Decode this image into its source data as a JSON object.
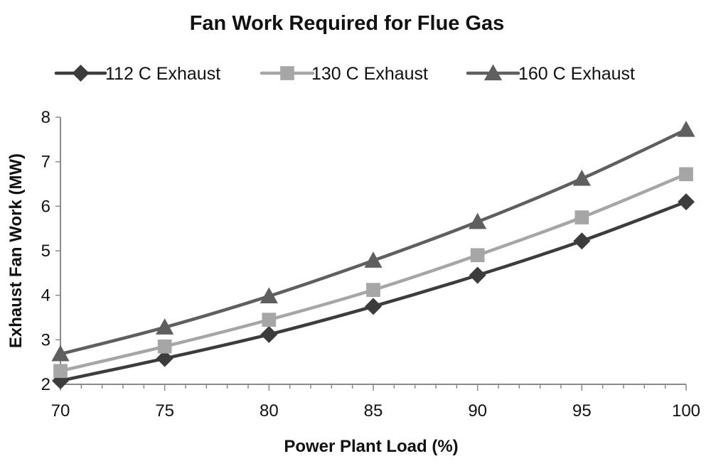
{
  "chart_data": {
    "type": "line",
    "title": "Fan Work Required for Flue Gas",
    "xlabel": "Power Plant Load (%)",
    "ylabel": "Exhaust Fan Work (MW)",
    "x": [
      70,
      75,
      80,
      85,
      90,
      95,
      100
    ],
    "xlim": [
      70,
      100
    ],
    "ylim": [
      2,
      8
    ],
    "xticks": [
      "70",
      "75",
      "80",
      "85",
      "90",
      "95",
      "100"
    ],
    "yticks": [
      "2",
      "3",
      "4",
      "5",
      "6",
      "7",
      "8"
    ],
    "grid": false,
    "legend_position": "top",
    "series": [
      {
        "name": "112 C Exhaust",
        "marker": "diamond",
        "color": "#3c3c3c",
        "values": [
          2.08,
          2.58,
          3.12,
          3.75,
          4.45,
          5.22,
          6.1
        ]
      },
      {
        "name": "130 C Exhaust",
        "marker": "square",
        "color": "#a6a6a6",
        "values": [
          2.3,
          2.85,
          3.45,
          4.12,
          4.9,
          5.75,
          6.72
        ]
      },
      {
        "name": "160 C Exhaust",
        "marker": "triangle",
        "color": "#5f5f5f",
        "values": [
          2.68,
          3.28,
          3.98,
          4.78,
          5.65,
          6.62,
          7.72
        ]
      }
    ]
  }
}
